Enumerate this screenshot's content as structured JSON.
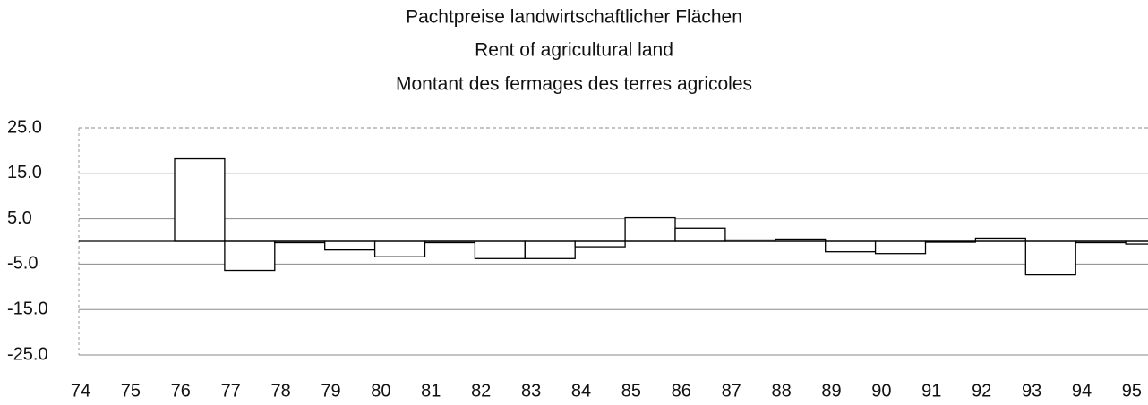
{
  "chart_data": {
    "type": "bar",
    "title": [
      "Pachtpreise landwirtschaftlicher Flächen",
      "Rent of agricultural land",
      "Montant des fermages des terres agricoles"
    ],
    "categories": [
      "74",
      "75",
      "76",
      "77",
      "78",
      "79",
      "80",
      "81",
      "82",
      "83",
      "84",
      "85",
      "86",
      "87",
      "88",
      "89",
      "90",
      "91",
      "92",
      "93",
      "94",
      "95"
    ],
    "values": [
      null,
      null,
      18.2,
      -6.4,
      -0.3,
      -1.9,
      -3.4,
      -0.3,
      -3.8,
      -3.8,
      -1.2,
      5.2,
      2.9,
      0.3,
      0.5,
      -2.3,
      -2.7,
      -0.2,
      0.7,
      -7.4,
      -0.3,
      -0.6
    ],
    "color": "#ffffff",
    "ylim": [
      -25,
      25
    ],
    "yticks": [
      {
        "value": 25,
        "label": "25.0"
      },
      {
        "value": 15,
        "label": "15.0"
      },
      {
        "value": 5,
        "label": "5.0"
      },
      {
        "value": -5,
        "label": "-5.0"
      },
      {
        "value": -15,
        "label": "-15.0"
      },
      {
        "value": -25,
        "label": "-25.0"
      }
    ],
    "grid": true
  }
}
